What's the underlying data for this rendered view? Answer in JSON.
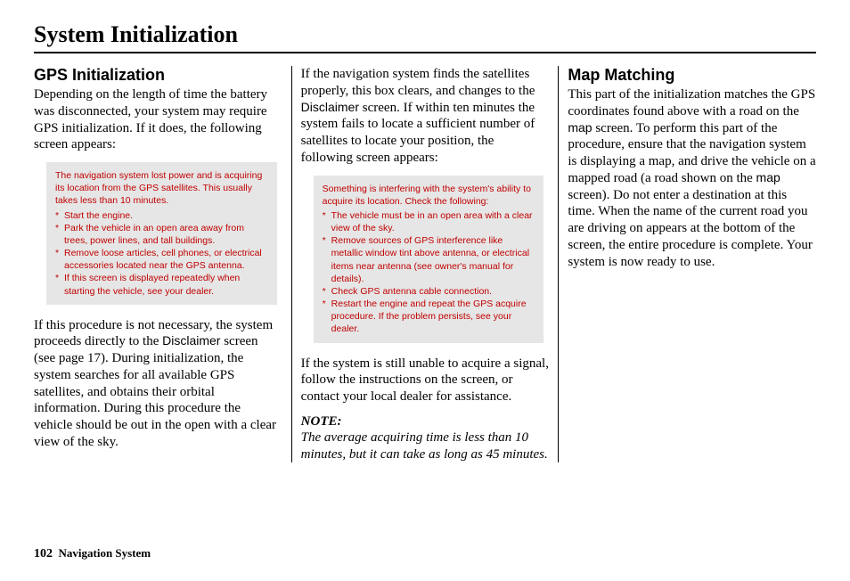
{
  "page": {
    "title": "System Initialization",
    "footer_page": "102",
    "footer_label": "Navigation System"
  },
  "col1": {
    "heading": "GPS Initialization",
    "p1": "Depending on the length of time the battery was disconnected, your system may require GPS initialization. If it does, the following screen appears:",
    "box": {
      "intro": "The navigation system lost power and is acquiring its location from the GPS satellites. This usually takes less than 10 minutes.",
      "items": [
        "Start the engine.",
        "Park the vehicle in an open area away from trees, power lines, and tall buildings.",
        "Remove loose articles, cell phones, or electrical accessories located near the GPS antenna.",
        "If this screen is displayed repeatedly when starting the vehicle, see your dealer."
      ]
    },
    "p2a": "If this procedure is not necessary, the system proceeds directly to the ",
    "p2_sans": "Disclaimer",
    "p2b": " screen (see page 17). During initialization, the system searches for all available GPS satellites, and obtains their orbital information. During this procedure the vehicle should be out in the open with a clear view of the sky."
  },
  "col2": {
    "p1a": "If the navigation system finds the satellites properly, this box clears, and changes to the ",
    "p1_sans": "Disclaimer",
    "p1b": " screen. If within ten minutes the system fails to locate a sufficient number of satellites to locate your position, the following screen appears:",
    "box": {
      "intro": "Something is interfering with the system's ability to acquire its location. Check the following:",
      "items": [
        "The vehicle must be in an open area with a clear view of the sky.",
        "Remove sources of GPS interference like metallic window tint above antenna, or electrical items near antenna (see owner's manual for details).",
        "Check GPS antenna cable connection.",
        "Restart the engine and repeat the GPS acquire procedure. If the problem persists, see your dealer."
      ]
    },
    "p2": "If the system is still unable to acquire a signal, follow the instructions on the screen, or contact your local dealer for assistance.",
    "note_label": "NOTE:",
    "note_text": "The average acquiring time is less than 10 minutes, but it can take as long as 45 minutes."
  },
  "col3": {
    "heading": "Map Matching",
    "p1a": "This part of the initialization matches the GPS coordinates found above with a road on the ",
    "p1_sans1": "map",
    "p1b": " screen. To perform this part of the procedure, ensure that the navigation system is displaying a map, and drive the vehicle on a mapped road (a road shown on the ",
    "p1_sans2": "map",
    "p1c": " screen). Do not enter a destination at this time. When the name of the current road you are driving on appears at the bottom of the screen, the entire procedure is complete. Your system is now ready to use."
  }
}
